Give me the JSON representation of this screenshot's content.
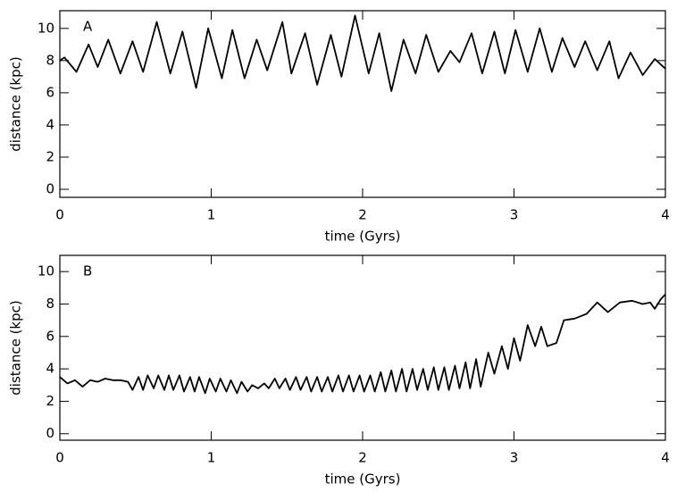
{
  "chart_data": [
    {
      "type": "line",
      "label": "A",
      "xlabel": "time (Gyrs)",
      "ylabel": "distance (kpc)",
      "xlim": [
        0,
        4
      ],
      "ylim": [
        -0.5,
        11.1
      ],
      "xticks": [
        0,
        1,
        2,
        3,
        4
      ],
      "yticks": [
        0,
        2,
        4,
        6,
        8,
        10
      ],
      "color": "#000000",
      "x": [
        0,
        0.03,
        0.11,
        0.19,
        0.25,
        0.32,
        0.4,
        0.48,
        0.55,
        0.64,
        0.73,
        0.81,
        0.9,
        0.98,
        1.07,
        1.14,
        1.22,
        1.3,
        1.37,
        1.47,
        1.53,
        1.62,
        1.7,
        1.79,
        1.86,
        1.95,
        2.04,
        2.11,
        2.19,
        2.27,
        2.35,
        2.42,
        2.5,
        2.58,
        2.64,
        2.72,
        2.79,
        2.87,
        2.94,
        3.01,
        3.09,
        3.17,
        3.25,
        3.32,
        3.4,
        3.47,
        3.55,
        3.63,
        3.69,
        3.77,
        3.85,
        3.93,
        4.0
      ],
      "values": [
        8.0,
        8.2,
        7.3,
        9.0,
        7.6,
        9.3,
        7.2,
        9.2,
        7.3,
        10.4,
        7.2,
        9.8,
        6.3,
        10.0,
        6.9,
        9.9,
        6.9,
        9.3,
        7.4,
        10.4,
        7.2,
        9.7,
        6.5,
        9.6,
        7.0,
        10.8,
        7.2,
        9.7,
        6.1,
        9.3,
        7.2,
        9.6,
        7.3,
        8.6,
        7.9,
        9.7,
        7.2,
        9.8,
        7.2,
        9.9,
        7.3,
        10.0,
        7.3,
        9.4,
        7.6,
        9.2,
        7.4,
        9.2,
        6.9,
        8.5,
        7.1,
        8.1,
        7.5
      ]
    },
    {
      "type": "line",
      "label": "B",
      "xlabel": "time (Gyrs)",
      "ylabel": "distance (kpc)",
      "xlim": [
        0,
        4
      ],
      "ylim": [
        -0.4,
        11
      ],
      "xticks": [
        0,
        1,
        2,
        3,
        4
      ],
      "yticks": [
        0,
        2,
        4,
        6,
        8,
        10
      ],
      "color": "#000000",
      "x": [
        0,
        0.05,
        0.1,
        0.15,
        0.2,
        0.25,
        0.3,
        0.35,
        0.4,
        0.45,
        0.48,
        0.52,
        0.55,
        0.58,
        0.62,
        0.65,
        0.69,
        0.72,
        0.75,
        0.79,
        0.82,
        0.86,
        0.89,
        0.92,
        0.96,
        0.99,
        1.03,
        1.06,
        1.1,
        1.13,
        1.17,
        1.2,
        1.24,
        1.27,
        1.31,
        1.35,
        1.38,
        1.42,
        1.45,
        1.49,
        1.52,
        1.56,
        1.59,
        1.63,
        1.66,
        1.7,
        1.73,
        1.77,
        1.8,
        1.84,
        1.87,
        1.91,
        1.94,
        1.98,
        2.01,
        2.05,
        2.08,
        2.12,
        2.15,
        2.19,
        2.22,
        2.26,
        2.29,
        2.33,
        2.36,
        2.4,
        2.43,
        2.47,
        2.5,
        2.54,
        2.57,
        2.61,
        2.64,
        2.68,
        2.71,
        2.75,
        2.78,
        2.83,
        2.87,
        2.92,
        2.96,
        3.0,
        3.04,
        3.09,
        3.14,
        3.18,
        3.22,
        3.28,
        3.33,
        3.4,
        3.48,
        3.55,
        3.62,
        3.7,
        3.78,
        3.85,
        3.9,
        3.93,
        3.97,
        4.0
      ],
      "values": [
        3.5,
        3.1,
        3.3,
        2.9,
        3.3,
        3.2,
        3.4,
        3.3,
        3.3,
        3.2,
        2.7,
        3.5,
        2.7,
        3.6,
        2.8,
        3.6,
        2.7,
        3.6,
        2.7,
        3.6,
        2.6,
        3.5,
        2.6,
        3.5,
        2.5,
        3.4,
        2.6,
        3.4,
        2.6,
        3.3,
        2.5,
        3.2,
        2.6,
        3.0,
        2.8,
        3.1,
        2.8,
        3.4,
        2.8,
        3.4,
        2.7,
        3.5,
        2.7,
        3.5,
        2.6,
        3.5,
        2.6,
        3.5,
        2.6,
        3.6,
        2.6,
        3.6,
        2.6,
        3.6,
        2.6,
        3.6,
        2.6,
        3.8,
        2.6,
        3.9,
        2.6,
        4.0,
        2.6,
        4.0,
        2.7,
        4.0,
        2.7,
        4.1,
        2.7,
        4.1,
        2.7,
        4.2,
        2.8,
        4.4,
        2.8,
        4.6,
        2.9,
        5.0,
        3.7,
        5.4,
        4.0,
        5.9,
        4.5,
        6.7,
        5.4,
        6.6,
        5.4,
        5.6,
        7.0,
        7.1,
        7.4,
        8.1,
        7.5,
        8.1,
        8.2,
        8.0,
        8.1,
        7.7,
        8.3,
        8.6
      ]
    }
  ]
}
